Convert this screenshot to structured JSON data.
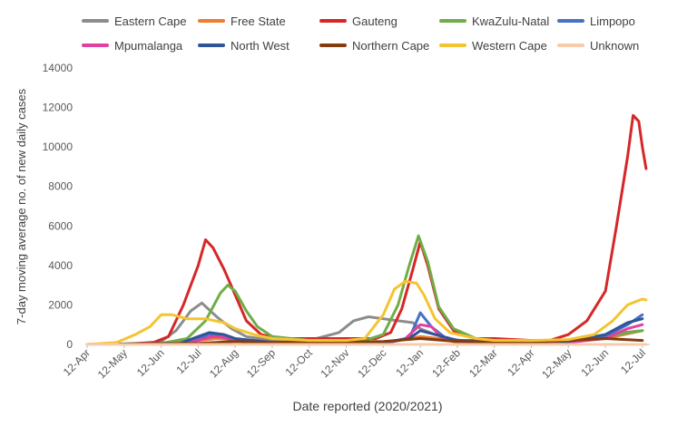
{
  "chart_data": {
    "type": "line",
    "xlabel": "Date reported (2020/2021)",
    "ylabel": "7-day moving average no. of new daily cases",
    "ylim": [
      0,
      14000
    ],
    "yticks": [
      0,
      2000,
      4000,
      6000,
      8000,
      10000,
      12000,
      14000
    ],
    "xticks": [
      "12-Apr",
      "12-May",
      "12-Jun",
      "12-Jul",
      "12-Aug",
      "12-Sep",
      "12-Oct",
      "12-Nov",
      "12-Dec",
      "12-Jan",
      "12-Feb",
      "12-Mar",
      "12-Apr",
      "12-May",
      "12-Jun",
      "12-Jul"
    ],
    "x_unit": "month ticks (0 = 12-Apr-2020, 15 = 12-Jul-2021)",
    "grid": false,
    "legend_position": "top",
    "series": [
      {
        "name": "Eastern Cape",
        "color": "#8c8c8c",
        "points": [
          [
            0,
            0
          ],
          [
            1.5,
            50
          ],
          [
            2,
            150
          ],
          [
            2.4,
            700
          ],
          [
            2.8,
            1700
          ],
          [
            3.1,
            2100
          ],
          [
            3.5,
            1400
          ],
          [
            3.9,
            800
          ],
          [
            4.3,
            400
          ],
          [
            5,
            200
          ],
          [
            6,
            200
          ],
          [
            6.8,
            600
          ],
          [
            7.2,
            1200
          ],
          [
            7.6,
            1400
          ],
          [
            8,
            1300
          ],
          [
            8.4,
            1200
          ],
          [
            8.8,
            1100
          ],
          [
            9,
            800
          ],
          [
            9.4,
            500
          ],
          [
            10,
            200
          ],
          [
            11,
            100
          ],
          [
            13,
            150
          ],
          [
            14,
            300
          ],
          [
            14.5,
            600
          ],
          [
            15,
            700
          ]
        ]
      },
      {
        "name": "Free State",
        "color": "#ed7d31",
        "points": [
          [
            0,
            0
          ],
          [
            2,
            20
          ],
          [
            3,
            200
          ],
          [
            3.5,
            300
          ],
          [
            4,
            250
          ],
          [
            5,
            100
          ],
          [
            8,
            100
          ],
          [
            9,
            400
          ],
          [
            9.5,
            300
          ],
          [
            10,
            100
          ],
          [
            12,
            100
          ],
          [
            14,
            300
          ],
          [
            15,
            700
          ]
        ]
      },
      {
        "name": "Gauteng",
        "color": "#d62728",
        "points": [
          [
            0,
            0
          ],
          [
            1,
            20
          ],
          [
            1.8,
            100
          ],
          [
            2.2,
            400
          ],
          [
            2.6,
            2000
          ],
          [
            3,
            4000
          ],
          [
            3.2,
            5300
          ],
          [
            3.4,
            4900
          ],
          [
            3.7,
            3800
          ],
          [
            4,
            2500
          ],
          [
            4.3,
            1200
          ],
          [
            4.7,
            500
          ],
          [
            5.2,
            300
          ],
          [
            6,
            300
          ],
          [
            7,
            300
          ],
          [
            7.8,
            300
          ],
          [
            8.2,
            600
          ],
          [
            8.5,
            1800
          ],
          [
            8.8,
            3800
          ],
          [
            9,
            5200
          ],
          [
            9.2,
            4000
          ],
          [
            9.5,
            1800
          ],
          [
            9.9,
            700
          ],
          [
            10.5,
            300
          ],
          [
            11,
            300
          ],
          [
            12,
            200
          ],
          [
            12.5,
            200
          ],
          [
            13,
            500
          ],
          [
            13.5,
            1200
          ],
          [
            14,
            2700
          ],
          [
            14.3,
            6000
          ],
          [
            14.6,
            9500
          ],
          [
            14.75,
            11600
          ],
          [
            14.9,
            11300
          ],
          [
            15,
            10000
          ],
          [
            15.1,
            8900
          ]
        ]
      },
      {
        "name": "KwaZulu-Natal",
        "color": "#70ad47",
        "points": [
          [
            0,
            0
          ],
          [
            2,
            50
          ],
          [
            2.7,
            300
          ],
          [
            3.2,
            1200
          ],
          [
            3.6,
            2600
          ],
          [
            3.8,
            3000
          ],
          [
            4,
            2700
          ],
          [
            4.3,
            1700
          ],
          [
            4.6,
            900
          ],
          [
            5,
            400
          ],
          [
            6,
            200
          ],
          [
            7.5,
            200
          ],
          [
            8,
            500
          ],
          [
            8.4,
            2000
          ],
          [
            8.7,
            4000
          ],
          [
            8.95,
            5500
          ],
          [
            9.2,
            4200
          ],
          [
            9.5,
            1900
          ],
          [
            9.9,
            800
          ],
          [
            10.5,
            300
          ],
          [
            11,
            200
          ],
          [
            12,
            150
          ],
          [
            13,
            200
          ],
          [
            14,
            400
          ],
          [
            15,
            700
          ]
        ]
      },
      {
        "name": "Limpopo",
        "color": "#4472c4",
        "points": [
          [
            0,
            0
          ],
          [
            2.5,
            20
          ],
          [
            3,
            300
          ],
          [
            3.3,
            500
          ],
          [
            3.6,
            400
          ],
          [
            4,
            200
          ],
          [
            5,
            50
          ],
          [
            8,
            50
          ],
          [
            8.7,
            300
          ],
          [
            9,
            1600
          ],
          [
            9.3,
            900
          ],
          [
            9.7,
            300
          ],
          [
            10.5,
            100
          ],
          [
            13,
            100
          ],
          [
            14,
            400
          ],
          [
            14.6,
            1000
          ],
          [
            15,
            1500
          ]
        ]
      },
      {
        "name": "Mpumalanga",
        "color": "#e040a0",
        "points": [
          [
            0,
            0
          ],
          [
            2.7,
            50
          ],
          [
            3,
            200
          ],
          [
            3.4,
            400
          ],
          [
            3.8,
            350
          ],
          [
            4.2,
            150
          ],
          [
            5,
            50
          ],
          [
            8,
            50
          ],
          [
            8.6,
            300
          ],
          [
            9,
            1000
          ],
          [
            9.3,
            900
          ],
          [
            9.6,
            300
          ],
          [
            10.5,
            100
          ],
          [
            13,
            100
          ],
          [
            14,
            300
          ],
          [
            14.6,
            800
          ],
          [
            15,
            1000
          ]
        ]
      },
      {
        "name": "North West",
        "color": "#2f5597",
        "points": [
          [
            0,
            0
          ],
          [
            2.5,
            50
          ],
          [
            3,
            400
          ],
          [
            3.3,
            600
          ],
          [
            3.7,
            500
          ],
          [
            4,
            300
          ],
          [
            5,
            100
          ],
          [
            8,
            100
          ],
          [
            8.7,
            300
          ],
          [
            9,
            700
          ],
          [
            9.4,
            500
          ],
          [
            10,
            200
          ],
          [
            13,
            150
          ],
          [
            14,
            500
          ],
          [
            14.6,
            1100
          ],
          [
            15,
            1300
          ]
        ]
      },
      {
        "name": "Northern Cape",
        "color": "#843c0c",
        "points": [
          [
            0,
            0
          ],
          [
            3,
            50
          ],
          [
            4,
            150
          ],
          [
            5,
            100
          ],
          [
            8,
            150
          ],
          [
            9,
            300
          ],
          [
            10,
            150
          ],
          [
            12,
            100
          ],
          [
            13,
            200
          ],
          [
            14,
            300
          ],
          [
            15,
            200
          ]
        ]
      },
      {
        "name": "Western Cape",
        "color": "#f4c430",
        "points": [
          [
            0,
            0
          ],
          [
            0.8,
            100
          ],
          [
            1.3,
            500
          ],
          [
            1.7,
            900
          ],
          [
            2,
            1500
          ],
          [
            2.3,
            1500
          ],
          [
            2.7,
            1300
          ],
          [
            3.2,
            1300
          ],
          [
            3.7,
            1100
          ],
          [
            4,
            800
          ],
          [
            4.5,
            500
          ],
          [
            5,
            300
          ],
          [
            6,
            200
          ],
          [
            7,
            200
          ],
          [
            7.5,
            300
          ],
          [
            8,
            1500
          ],
          [
            8.3,
            2800
          ],
          [
            8.6,
            3200
          ],
          [
            8.9,
            3100
          ],
          [
            9.1,
            2500
          ],
          [
            9.4,
            1300
          ],
          [
            9.8,
            600
          ],
          [
            10.5,
            300
          ],
          [
            11,
            200
          ],
          [
            12,
            200
          ],
          [
            13,
            250
          ],
          [
            13.7,
            500
          ],
          [
            14.2,
            1200
          ],
          [
            14.6,
            2000
          ],
          [
            15,
            2300
          ],
          [
            15.1,
            2250
          ]
        ]
      },
      {
        "name": "Unknown",
        "color": "#f8cbad",
        "points": [
          [
            0,
            0
          ],
          [
            15.1,
            0
          ]
        ]
      }
    ]
  }
}
